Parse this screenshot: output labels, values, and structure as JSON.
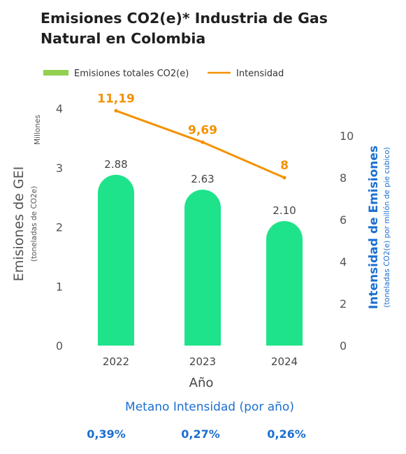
{
  "chart_data": {
    "type": "bar",
    "title": "Emisiones CO2(e)* Industria de Gas Natural en Colombia",
    "categories": [
      "2022",
      "2023",
      "2024"
    ],
    "xlabel": "Año",
    "series": [
      {
        "name": "Emisiones totales CO2(e)",
        "type": "bar",
        "axis": "left",
        "values": [
          2.88,
          2.63,
          2.1
        ],
        "labels": [
          "2.88",
          "2.63",
          "2.10"
        ]
      },
      {
        "name": "Intensidad",
        "type": "line",
        "axis": "right",
        "values": [
          11.19,
          9.69,
          8
        ],
        "labels": [
          "11,19",
          "9,69",
          "8"
        ]
      }
    ],
    "y_left": {
      "label": "Emisiones de GEI",
      "sublabel": "(toneladas de CO2e)",
      "unit": "Millones",
      "ylim": [
        0,
        4
      ],
      "ticks": [
        "0",
        "1",
        "2",
        "3",
        "4"
      ]
    },
    "y_right": {
      "label": "Intensidad de Emisiones",
      "sublabel": "(toneladas CO2(e) por millón de pie cubico)",
      "ylim": [
        0,
        10
      ],
      "ticks": [
        "0",
        "2",
        "4",
        "6",
        "8",
        "10"
      ]
    },
    "legend": {
      "position": "top-left",
      "bar_label": "Emisiones totales CO2(e)",
      "line_label": "Intensidad"
    },
    "grid": false,
    "colors": {
      "bar": "#1ee38a",
      "line": "#f39200",
      "legend_bar": "#92d050",
      "accent": "#1b6fd1"
    },
    "metano": {
      "title": "Metano Intensidad (por año)",
      "values": [
        "0,39%",
        "0,27%",
        "0,26%"
      ]
    }
  }
}
